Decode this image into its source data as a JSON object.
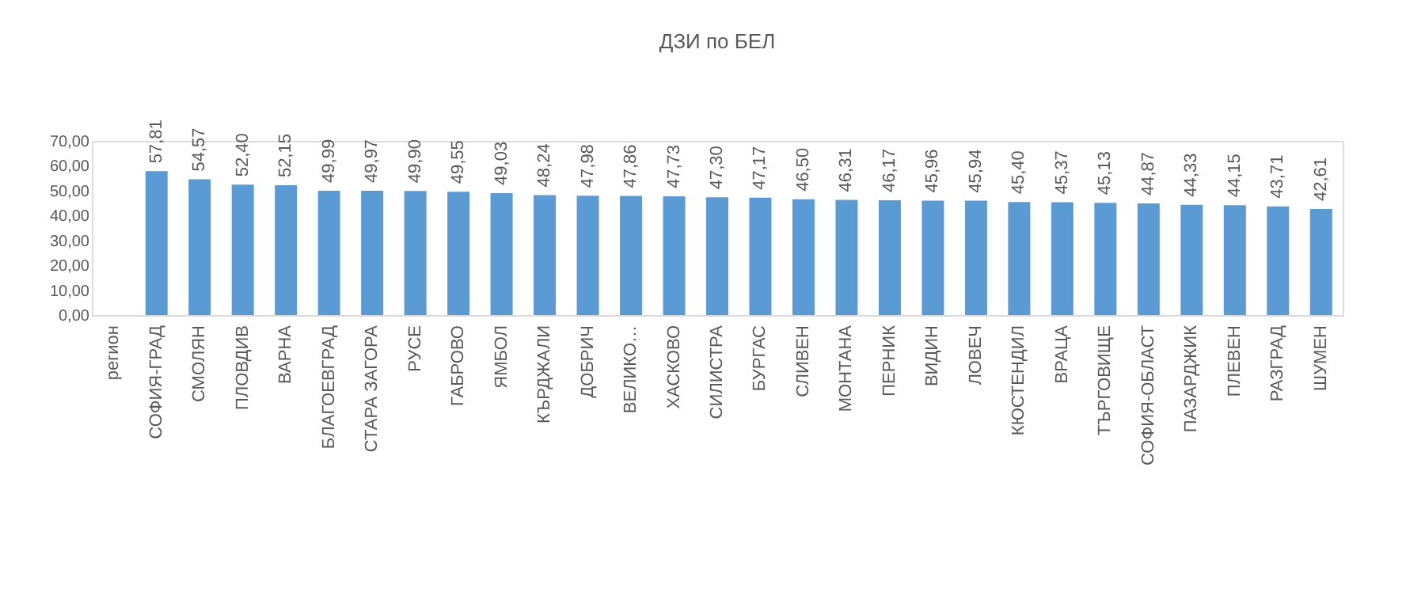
{
  "chart_data": {
    "type": "bar",
    "title": "ДЗИ по БЕЛ",
    "categories": [
      "регион",
      "СОФИЯ-ГРАД",
      "СМОЛЯН",
      "ПЛОВДИВ",
      "ВАРНА",
      "БЛАГОЕВГРАД",
      "СТАРА ЗАГОРА",
      "РУСЕ",
      "ГАБРОВО",
      "ЯМБОЛ",
      "КЪРДЖАЛИ",
      "ДОБРИЧ",
      "ВЕЛИКО…",
      "ХАСКОВО",
      "СИЛИСТРА",
      "БУРГАС",
      "СЛИВЕН",
      "МОНТАНА",
      "ПЕРНИК",
      "ВИДИН",
      "ЛОВЕЧ",
      "КЮСТЕНДИЛ",
      "ВРАЦА",
      "ТЪРГОВИЩЕ",
      "СОФИЯ-ОБЛАСТ",
      "ПАЗАРДЖИК",
      "ПЛЕВЕН",
      "РАЗГРАД",
      "ШУМЕН"
    ],
    "values": [
      null,
      57.81,
      54.57,
      52.4,
      52.15,
      49.99,
      49.97,
      49.9,
      49.55,
      49.03,
      48.24,
      47.98,
      47.86,
      47.73,
      47.3,
      47.17,
      46.5,
      46.31,
      46.17,
      45.96,
      45.94,
      45.4,
      45.37,
      45.13,
      44.87,
      44.33,
      44.15,
      43.71,
      42.61
    ],
    "value_labels": [
      null,
      "57,81",
      "54,57",
      "52,40",
      "52,15",
      "49,99",
      "49,97",
      "49,90",
      "49,55",
      "49,03",
      "48,24",
      "47,98",
      "47,86",
      "47,73",
      "47,30",
      "47,17",
      "46,50",
      "46,31",
      "46,17",
      "45,96",
      "45,94",
      "45,40",
      "45,37",
      "45,13",
      "44,87",
      "44,33",
      "44,15",
      "43,71",
      "42,61"
    ],
    "color": "#5b9bd5",
    "ylim": [
      0,
      70
    ],
    "yticks": [
      {
        "value": 0,
        "label": "0,00"
      },
      {
        "value": 10,
        "label": "10,00"
      },
      {
        "value": 20,
        "label": "20,00"
      },
      {
        "value": 30,
        "label": "30,00"
      },
      {
        "value": 40,
        "label": "40,00"
      },
      {
        "value": 50,
        "label": "50,00"
      },
      {
        "value": 60,
        "label": "60,00"
      },
      {
        "value": 70,
        "label": "70,00"
      }
    ],
    "grid": false
  }
}
